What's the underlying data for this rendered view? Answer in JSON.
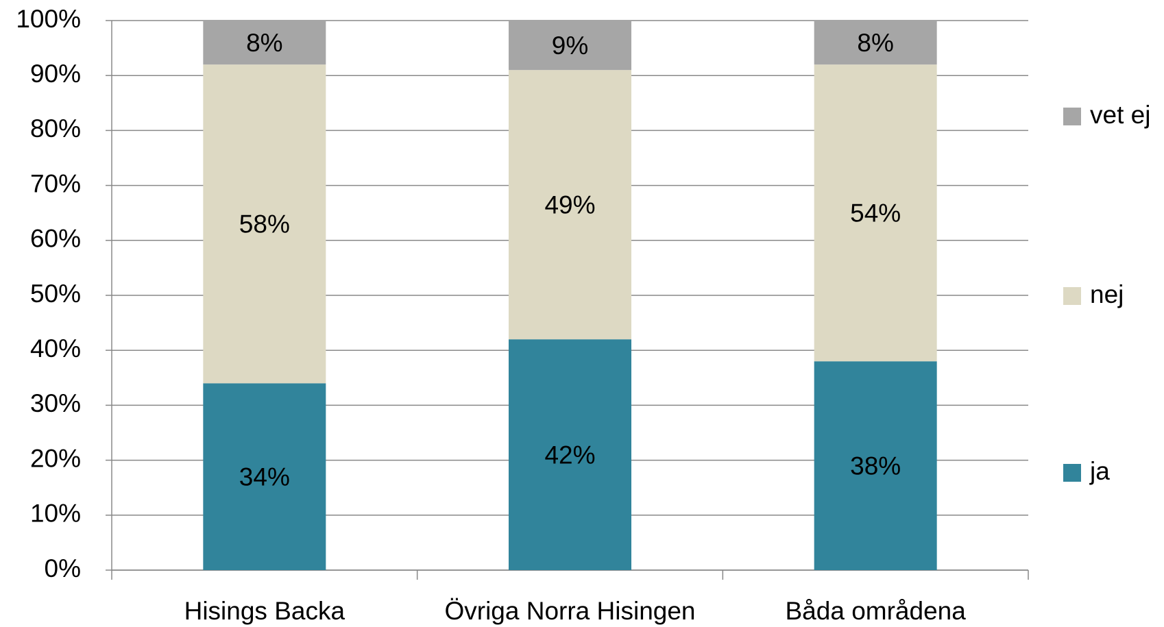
{
  "chart_data": {
    "type": "stacked_bar",
    "categories": [
      "Hisings Backa",
      "Övriga Norra Hisingen",
      "Båda områdena"
    ],
    "series": [
      {
        "name": "ja",
        "color": "#31849b",
        "values": [
          34,
          42,
          38
        ],
        "value_labels": [
          "34%",
          "42%",
          "38%"
        ]
      },
      {
        "name": "nej",
        "color": "#ddd9c3",
        "values": [
          58,
          49,
          54
        ],
        "value_labels": [
          "58%",
          "49%",
          "54%"
        ]
      },
      {
        "name": "vet ej",
        "color": "#a6a6a6",
        "values": [
          8,
          9,
          8
        ],
        "value_labels": [
          "8%",
          "9%",
          "8%"
        ]
      }
    ],
    "ylim": [
      0,
      100
    ],
    "yticks": [
      {
        "value": 0,
        "label": "0%"
      },
      {
        "value": 10,
        "label": "10%"
      },
      {
        "value": 20,
        "label": "20%"
      },
      {
        "value": 30,
        "label": "30%"
      },
      {
        "value": 40,
        "label": "40%"
      },
      {
        "value": 50,
        "label": "50%"
      },
      {
        "value": 60,
        "label": "60%"
      },
      {
        "value": 70,
        "label": "70%"
      },
      {
        "value": 80,
        "label": "80%"
      },
      {
        "value": 90,
        "label": "90%"
      },
      {
        "value": 100,
        "label": "100%"
      }
    ],
    "grid": true,
    "legend": "right"
  }
}
